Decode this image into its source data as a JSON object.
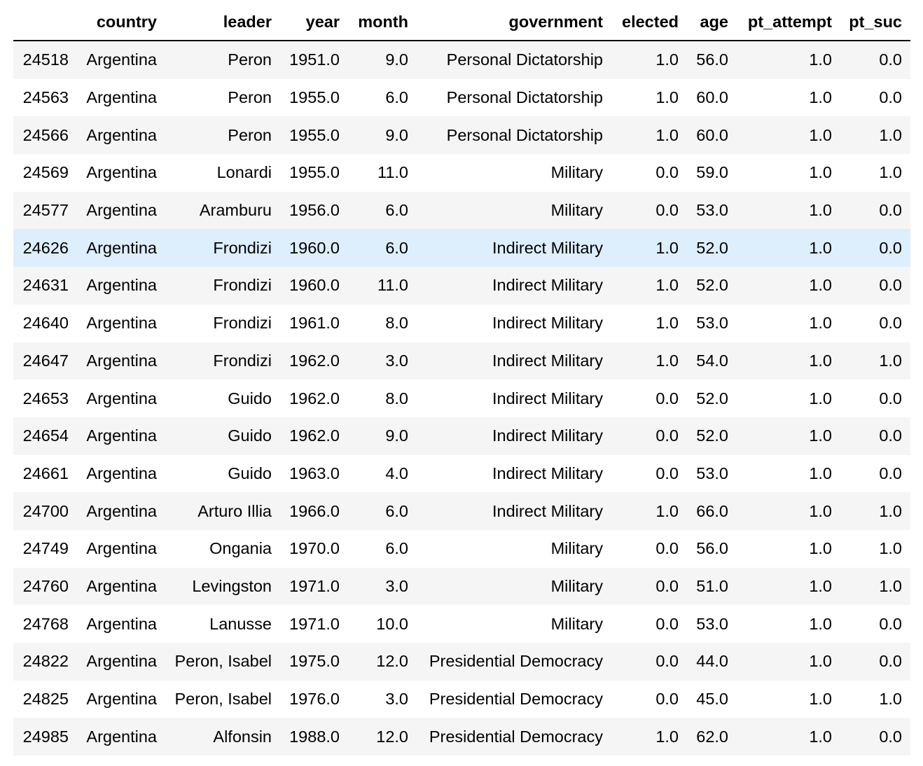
{
  "table": {
    "index_header": "",
    "columns": [
      "country",
      "leader",
      "year",
      "month",
      "government",
      "elected",
      "age",
      "pt_attempt",
      "pt_suc"
    ],
    "highlighted_row_index": 5,
    "rows": [
      {
        "index": "24518",
        "cells": [
          "Argentina",
          "Peron",
          "1951.0",
          "9.0",
          "Personal Dictatorship",
          "1.0",
          "56.0",
          "1.0",
          "0.0"
        ]
      },
      {
        "index": "24563",
        "cells": [
          "Argentina",
          "Peron",
          "1955.0",
          "6.0",
          "Personal Dictatorship",
          "1.0",
          "60.0",
          "1.0",
          "0.0"
        ]
      },
      {
        "index": "24566",
        "cells": [
          "Argentina",
          "Peron",
          "1955.0",
          "9.0",
          "Personal Dictatorship",
          "1.0",
          "60.0",
          "1.0",
          "1.0"
        ]
      },
      {
        "index": "24569",
        "cells": [
          "Argentina",
          "Lonardi",
          "1955.0",
          "11.0",
          "Military",
          "0.0",
          "59.0",
          "1.0",
          "1.0"
        ]
      },
      {
        "index": "24577",
        "cells": [
          "Argentina",
          "Aramburu",
          "1956.0",
          "6.0",
          "Military",
          "0.0",
          "53.0",
          "1.0",
          "0.0"
        ]
      },
      {
        "index": "24626",
        "cells": [
          "Argentina",
          "Frondizi",
          "1960.0",
          "6.0",
          "Indirect Military",
          "1.0",
          "52.0",
          "1.0",
          "0.0"
        ]
      },
      {
        "index": "24631",
        "cells": [
          "Argentina",
          "Frondizi",
          "1960.0",
          "11.0",
          "Indirect Military",
          "1.0",
          "52.0",
          "1.0",
          "0.0"
        ]
      },
      {
        "index": "24640",
        "cells": [
          "Argentina",
          "Frondizi",
          "1961.0",
          "8.0",
          "Indirect Military",
          "1.0",
          "53.0",
          "1.0",
          "0.0"
        ]
      },
      {
        "index": "24647",
        "cells": [
          "Argentina",
          "Frondizi",
          "1962.0",
          "3.0",
          "Indirect Military",
          "1.0",
          "54.0",
          "1.0",
          "1.0"
        ]
      },
      {
        "index": "24653",
        "cells": [
          "Argentina",
          "Guido",
          "1962.0",
          "8.0",
          "Indirect Military",
          "0.0",
          "52.0",
          "1.0",
          "0.0"
        ]
      },
      {
        "index": "24654",
        "cells": [
          "Argentina",
          "Guido",
          "1962.0",
          "9.0",
          "Indirect Military",
          "0.0",
          "52.0",
          "1.0",
          "0.0"
        ]
      },
      {
        "index": "24661",
        "cells": [
          "Argentina",
          "Guido",
          "1963.0",
          "4.0",
          "Indirect Military",
          "0.0",
          "53.0",
          "1.0",
          "0.0"
        ]
      },
      {
        "index": "24700",
        "cells": [
          "Argentina",
          "Arturo Illia",
          "1966.0",
          "6.0",
          "Indirect Military",
          "1.0",
          "66.0",
          "1.0",
          "1.0"
        ]
      },
      {
        "index": "24749",
        "cells": [
          "Argentina",
          "Ongania",
          "1970.0",
          "6.0",
          "Military",
          "0.0",
          "56.0",
          "1.0",
          "1.0"
        ]
      },
      {
        "index": "24760",
        "cells": [
          "Argentina",
          "Levingston",
          "1971.0",
          "3.0",
          "Military",
          "0.0",
          "51.0",
          "1.0",
          "1.0"
        ]
      },
      {
        "index": "24768",
        "cells": [
          "Argentina",
          "Lanusse",
          "1971.0",
          "10.0",
          "Military",
          "0.0",
          "53.0",
          "1.0",
          "0.0"
        ]
      },
      {
        "index": "24822",
        "cells": [
          "Argentina",
          "Peron, Isabel",
          "1975.0",
          "12.0",
          "Presidential Democracy",
          "0.0",
          "44.0",
          "1.0",
          "0.0"
        ]
      },
      {
        "index": "24825",
        "cells": [
          "Argentina",
          "Peron, Isabel",
          "1976.0",
          "3.0",
          "Presidential Democracy",
          "0.0",
          "45.0",
          "1.0",
          "1.0"
        ]
      },
      {
        "index": "24985",
        "cells": [
          "Argentina",
          "Alfonsin",
          "1988.0",
          "12.0",
          "Presidential Democracy",
          "1.0",
          "62.0",
          "1.0",
          "0.0"
        ]
      }
    ]
  },
  "colors": {
    "stripe": "#f5f5f5",
    "hover": "#ddeefc",
    "header_rule": "#000000"
  }
}
